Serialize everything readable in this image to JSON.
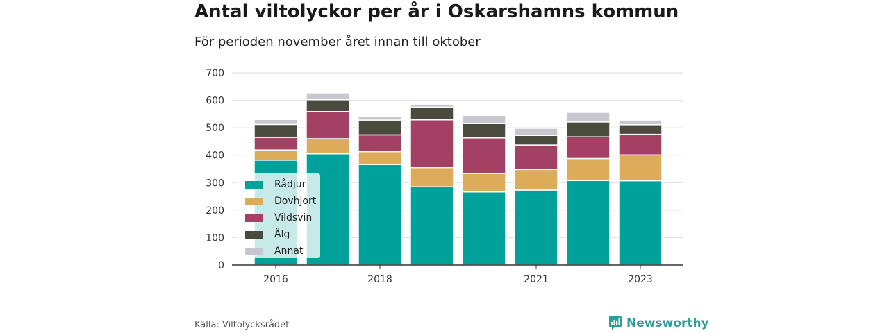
{
  "title": "Antal viltolyckor per år i Oskarshamns kommun",
  "subtitle": "För perioden november året innan till oktober",
  "source": "Källa: Viltolycksrådet",
  "brand": "Newsworthy",
  "colors": {
    "Rådjur": "#00a19a",
    "Dovhjort": "#dcac5b",
    "Vildsvin": "#a54065",
    "Älg": "#4a4b3c",
    "Annat": "#c8c7cf",
    "brand": "#2f9d9a"
  },
  "chart_data": {
    "type": "bar",
    "stacked": true,
    "title": "Antal viltolyckor per år i Oskarshamns kommun",
    "subtitle": "För perioden november året innan till oktober",
    "xlabel": "",
    "ylabel": "",
    "ylim": [
      0,
      700
    ],
    "yticks": [
      0,
      100,
      200,
      300,
      400,
      500,
      600,
      700
    ],
    "categories": [
      "2016",
      "2017",
      "2018",
      "2019",
      "2020",
      "2021",
      "2022",
      "2023"
    ],
    "xtick_labels": [
      "2016",
      "2018",
      "2021",
      "2023"
    ],
    "grid": true,
    "legend_position": "bottom-left",
    "series": [
      {
        "name": "Rådjur",
        "values": [
          382,
          405,
          366,
          285,
          266,
          273,
          308,
          307
        ]
      },
      {
        "name": "Dovhjort",
        "values": [
          37,
          55,
          47,
          70,
          67,
          75,
          80,
          94
        ]
      },
      {
        "name": "Vildsvin",
        "values": [
          46,
          99,
          61,
          174,
          130,
          89,
          79,
          75
        ]
      },
      {
        "name": "Älg",
        "values": [
          47,
          43,
          54,
          46,
          52,
          35,
          54,
          35
        ]
      },
      {
        "name": "Annat",
        "values": [
          18,
          25,
          14,
          11,
          30,
          26,
          35,
          17
        ]
      }
    ]
  }
}
